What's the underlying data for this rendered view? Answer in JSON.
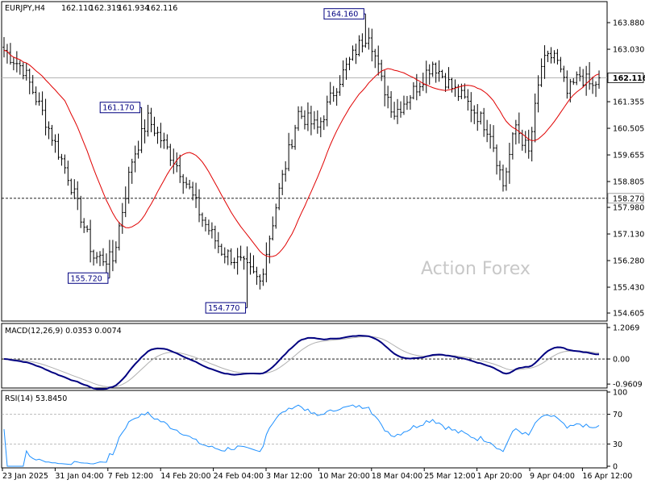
{
  "chart_data": [
    {
      "type": "candlestick",
      "title": "EURJPY,H4",
      "ohlc_header": [
        "162.110",
        "162.319",
        "161.934",
        "162.116"
      ],
      "y_ticks": [
        "163.880",
        "163.030",
        "162.116",
        "161.355",
        "160.505",
        "159.655",
        "158.805",
        "158.270",
        "157.980",
        "157.130",
        "156.280",
        "155.430",
        "154.605"
      ],
      "ylim": [
        154.4,
        164.5
      ],
      "x_labels": [
        "23 Jan 2025",
        "31 Jan 04:00",
        "7 Feb 12:00",
        "14 Feb 20:00",
        "24 Feb 04:00",
        "3 Mar 12:00",
        "10 Mar 20:00",
        "18 Mar 04:00",
        "25 Mar 12:00",
        "1 Apr 20:00",
        "9 Apr 04:00",
        "16 Apr 12:00"
      ],
      "price_waypoints": [
        [
          0,
          163.0
        ],
        [
          6,
          162.4
        ],
        [
          12,
          161.0
        ],
        [
          20,
          159.0
        ],
        [
          28,
          156.4
        ],
        [
          34,
          156.3
        ],
        [
          40,
          159.5
        ],
        [
          45,
          160.8
        ],
        [
          50,
          160.0
        ],
        [
          56,
          159.0
        ],
        [
          62,
          157.6
        ],
        [
          68,
          156.6
        ],
        [
          74,
          156.2
        ],
        [
          80,
          155.6
        ],
        [
          86,
          158.5
        ],
        [
          92,
          161.0
        ],
        [
          98,
          160.5
        ],
        [
          104,
          161.9
        ],
        [
          110,
          163.0
        ],
        [
          114,
          163.6
        ],
        [
          118,
          162.0
        ],
        [
          122,
          161.0
        ],
        [
          128,
          161.7
        ],
        [
          134,
          162.6
        ],
        [
          140,
          161.8
        ],
        [
          146,
          161.2
        ],
        [
          152,
          160.4
        ],
        [
          156,
          158.7
        ],
        [
          160,
          160.6
        ],
        [
          164,
          159.7
        ],
        [
          168,
          162.5
        ],
        [
          172,
          162.9
        ],
        [
          176,
          161.6
        ],
        [
          180,
          162.2
        ],
        [
          184,
          161.8
        ],
        [
          186,
          162.12
        ]
      ],
      "candle_count": 187,
      "annotations": [
        {
          "label": "164.160",
          "value": 164.16,
          "bar": 113
        },
        {
          "label": "161.170",
          "value": 161.17,
          "bar": 43
        },
        {
          "label": "155.720",
          "value": 155.72,
          "bar": 33
        },
        {
          "label": "154.770",
          "value": 154.77,
          "bar": 76
        }
      ],
      "current_price": {
        "label": "162.116",
        "value": 162.116
      },
      "support_line": {
        "label": "158.270",
        "value": 158.27
      },
      "moving_average": {
        "color": "#e00000"
      },
      "watermark": "Action Forex"
    },
    {
      "type": "line",
      "title": "MACD(12,26,9) 0.0353 0.0074",
      "y_ticks": [
        "1.2069",
        "0.00",
        "-0.9609"
      ],
      "ylim": [
        -1.05,
        1.3
      ],
      "zero_line": 0,
      "series_colors": {
        "macd": "#000080",
        "signal": "#b0b0b0"
      }
    },
    {
      "type": "line",
      "title": "RSI(14) 53.8450",
      "y_ticks": [
        "100",
        "70",
        "30",
        "0"
      ],
      "ylim": [
        0,
        100
      ],
      "levels": [
        70,
        30
      ],
      "series_colors": {
        "rsi": "#1e90ff"
      }
    }
  ]
}
